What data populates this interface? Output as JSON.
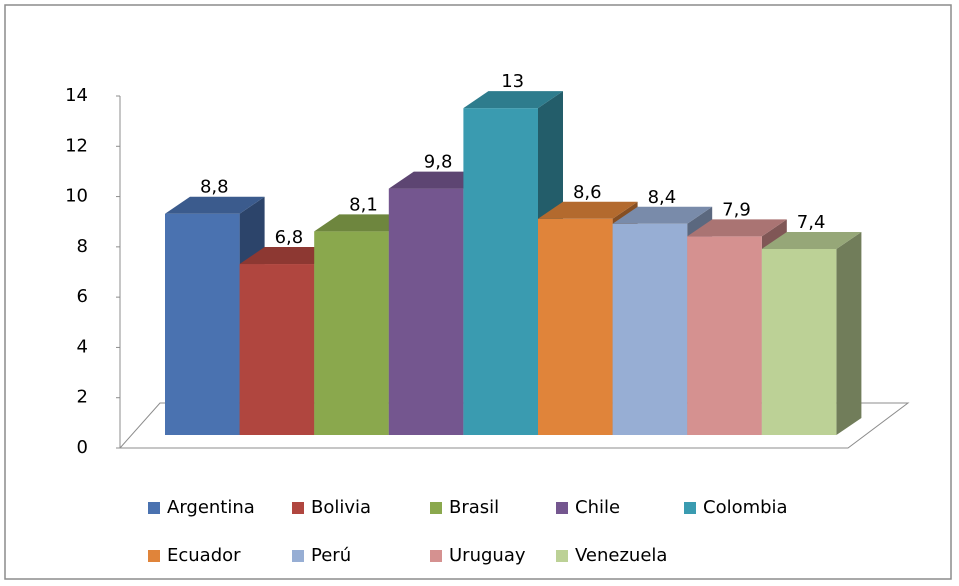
{
  "chart_data": {
    "type": "bar3d",
    "categories": [
      "Argentina",
      "Bolivia",
      "Brasil",
      "Chile",
      "Colombia",
      "Ecuador",
      "Perú",
      "Uruguay",
      "Venezuela"
    ],
    "values": [
      8.8,
      6.8,
      8.1,
      9.8,
      13,
      8.6,
      8.4,
      7.9,
      7.4
    ],
    "value_labels": [
      "8,8",
      "6,8",
      "8,1",
      "9,8",
      "13",
      "8,6",
      "8,4",
      "7,9",
      "7,4"
    ],
    "colors": [
      "#4a72b0",
      "#b0463f",
      "#8aa84d",
      "#74568f",
      "#3a9bb0",
      "#e0843a",
      "#97aed4",
      "#d59190",
      "#bcd196"
    ],
    "ylim": [
      0,
      14
    ],
    "yticks": [
      0,
      2,
      4,
      6,
      8,
      10,
      12,
      14
    ],
    "legend": "bottom"
  }
}
